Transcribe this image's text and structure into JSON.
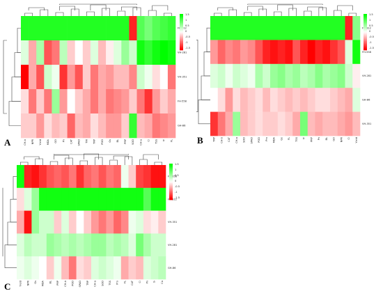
{
  "colors": {
    "green": "#00ff00",
    "white": "#ffffff",
    "red": "#ff0000"
  },
  "legend_ticks": [
    "1.5",
    "1",
    "0.5",
    "0",
    "-0.5",
    "-1",
    "-1.5"
  ],
  "panels": [
    {
      "label": "A",
      "rows": [
        "FH-812",
        "VH-281",
        "VH-351",
        "FH-558",
        "GH-86"
      ],
      "cols": [
        "CH-b",
        "NPR",
        "Yield",
        "MDA",
        "GO",
        "Pn",
        "CAT",
        "SPAD",
        "TIR",
        "TRP",
        "POD",
        "Gs",
        "BL",
        "PRP",
        "SOD",
        "CH-a",
        "Ci",
        "TSS",
        "Tr",
        "FL"
      ],
      "values": [
        [
          1.3,
          1.3,
          1.3,
          1.3,
          1.3,
          1.3,
          1.3,
          1.3,
          1.3,
          1.3,
          1.3,
          1.3,
          1.3,
          1.3,
          -1.3,
          1.0,
          0.8,
          1.0,
          1.1,
          1.2
        ],
        [
          0.2,
          -0.5,
          0.5,
          -1.0,
          -0.8,
          0.4,
          -0.3,
          0.0,
          -0.3,
          0.2,
          -0.4,
          -0.1,
          0.2,
          0.6,
          0.3,
          1.4,
          1.2,
          1.4,
          1.5,
          1.4
        ],
        [
          -1.5,
          -0.5,
          -1.0,
          0.3,
          0.1,
          -1.2,
          -0.6,
          -1.0,
          -0.3,
          -0.8,
          -0.5,
          -0.6,
          -0.4,
          -0.4,
          -0.7,
          0.3,
          0.1,
          -0.2,
          0.0,
          -0.8
        ],
        [
          -0.2,
          -0.8,
          -0.3,
          -0.8,
          0.6,
          -0.6,
          0.0,
          -0.3,
          -0.5,
          -0.8,
          -0.5,
          -0.8,
          -0.7,
          -0.6,
          -0.3,
          -0.8,
          -1.2,
          -0.6,
          -0.3,
          -0.5
        ],
        [
          -0.3,
          -0.3,
          -0.6,
          -0.2,
          -0.4,
          -0.3,
          -0.9,
          -0.4,
          -0.5,
          -0.2,
          -0.4,
          -0.6,
          -0.6,
          -0.3,
          1.2,
          -0.4,
          -0.5,
          -0.8,
          -0.7,
          -0.6
        ]
      ]
    },
    {
      "label": "B",
      "rows": [
        "FH-812",
        "FH-558",
        "VH-281",
        "GH-86",
        "VH-351"
      ],
      "cols": [
        "TRP",
        "CH-b",
        "CAT",
        "CH-a",
        "SOD",
        "SPAD",
        "POD",
        "Pro",
        "MDA",
        "Gs",
        "FL",
        "TSS",
        "Tr",
        "PRP",
        "Pn",
        "BL",
        "GO",
        "NPR",
        "Ci",
        "Yield"
      ],
      "values": [
        [
          1.3,
          1.3,
          1.3,
          1.3,
          1.3,
          1.3,
          1.3,
          1.3,
          1.3,
          1.3,
          1.3,
          1.3,
          1.3,
          1.3,
          1.3,
          1.3,
          1.3,
          1.3,
          -1.3,
          0.7
        ],
        [
          -0.6,
          -0.9,
          -0.7,
          -0.8,
          -0.6,
          -0.7,
          -1.0,
          -1.3,
          -1.4,
          -1.3,
          -1.4,
          -1.0,
          -1.3,
          -1.5,
          -1.3,
          -1.4,
          -1.2,
          -1.0,
          0.2,
          1.4
        ],
        [
          0.2,
          0.3,
          0.1,
          0.3,
          0.2,
          0.1,
          0.5,
          0.3,
          0.6,
          0.7,
          0.5,
          0.6,
          0.4,
          0.5,
          0.7,
          0.5,
          0.6,
          0.7,
          0.3,
          -0.1
        ],
        [
          0.0,
          -0.2,
          -0.6,
          -0.2,
          -0.4,
          -0.3,
          -0.2,
          -0.4,
          -0.2,
          -0.3,
          -0.4,
          -0.3,
          -0.4,
          -0.3,
          -0.2,
          -0.2,
          -0.3,
          -0.4,
          -0.5,
          0.2
        ],
        [
          -1.2,
          -0.8,
          -0.5,
          0.6,
          -0.4,
          -0.3,
          -0.2,
          -0.3,
          -0.3,
          -0.2,
          -0.3,
          -0.5,
          0.8,
          -0.4,
          -0.5,
          -0.4,
          -0.4,
          -0.5,
          -0.6,
          -0.4
        ]
      ]
    },
    {
      "label": "C",
      "rows": [
        "FH-558",
        "FH-812",
        "VH-351",
        "VH-281",
        "GH-86"
      ],
      "cols": [
        "Yield",
        "NPR",
        "Gs",
        "MDA",
        "BL",
        "PRP",
        "CH-b",
        "POD",
        "SPAD",
        "TRP",
        "CH-a",
        "SOD",
        "TSS",
        "Pro",
        "FL",
        "CAT",
        "Ci",
        "Pn",
        "Tr",
        "Ca"
      ],
      "values": [
        [
          1.4,
          -1.3,
          -1.4,
          -1.2,
          -1.0,
          -0.9,
          -1.0,
          -0.8,
          -1.2,
          -0.9,
          -0.8,
          -1.0,
          -0.8,
          -0.9,
          0.1,
          -0.3,
          -1.1,
          -1.2,
          -1.4,
          -1.4
        ],
        [
          -0.2,
          0.2,
          0.6,
          1.4,
          1.4,
          1.4,
          1.4,
          1.4,
          1.4,
          1.4,
          1.4,
          1.4,
          1.4,
          1.4,
          1.4,
          1.4,
          1.4,
          1.0,
          1.4,
          1.4
        ],
        [
          -0.5,
          -1.4,
          0.6,
          0.3,
          0.3,
          -0.3,
          0.2,
          -0.3,
          0.0,
          -0.3,
          -0.6,
          -0.8,
          -0.6,
          -0.9,
          -0.7,
          0.1,
          0.2,
          -0.2,
          -0.1,
          -0.3
        ],
        [
          0.2,
          0.4,
          0.3,
          0.3,
          0.6,
          0.5,
          0.4,
          0.5,
          0.4,
          0.5,
          0.6,
          0.6,
          0.4,
          0.5,
          0.4,
          0.2,
          0.8,
          0.5,
          0.3,
          0.3
        ],
        [
          0.1,
          0.2,
          0.1,
          0.0,
          -0.3,
          0.1,
          -0.4,
          -0.8,
          -0.2,
          -0.3,
          0.2,
          0.3,
          0.2,
          0.1,
          -0.5,
          -0.3,
          -0.4,
          0.2,
          0.3,
          0.4
        ]
      ]
    }
  ]
}
